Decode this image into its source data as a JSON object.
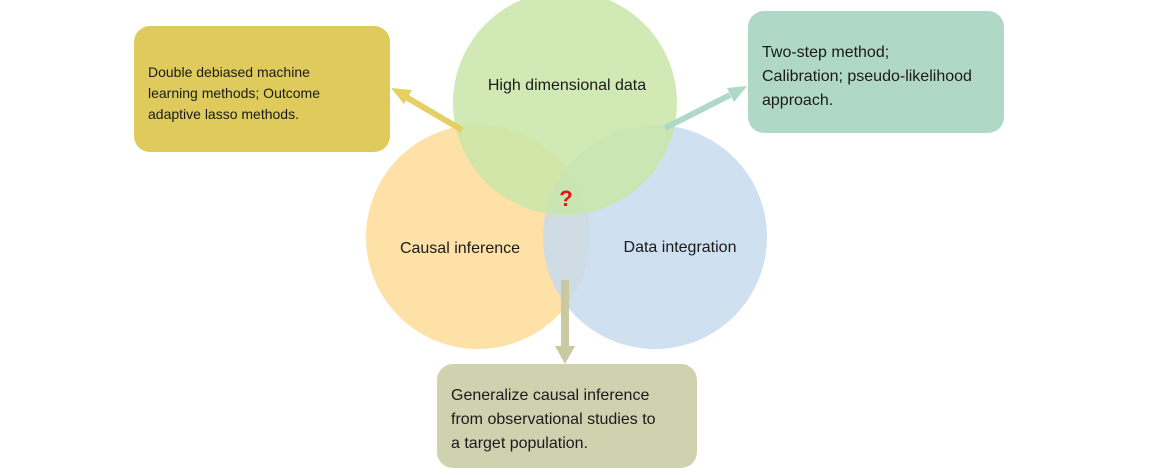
{
  "circles": {
    "high_dimensional": {
      "label": "High dimensional data",
      "color": "#c9e6a8"
    },
    "causal_inference": {
      "label": "Causal inference",
      "color": "#fddc98"
    },
    "data_integration": {
      "label": "Data integration",
      "color": "#c7daef"
    }
  },
  "center_mark": {
    "text": "?",
    "color": "#e8141c"
  },
  "boxes": {
    "ml_methods": {
      "lines": [
        "Double debiased machine",
        "learning methods; Outcome",
        "adaptive lasso methods."
      ],
      "color": "#dfcb5b"
    },
    "integration_methods": {
      "lines": [
        "Two-step method;",
        "Calibration; pseudo-likelihood",
        "approach."
      ],
      "color": "#b0d8c6"
    },
    "generalize": {
      "lines": [
        "Generalize causal inference",
        "from observational studies to",
        "a target population."
      ],
      "color": "#ced2ae"
    }
  }
}
